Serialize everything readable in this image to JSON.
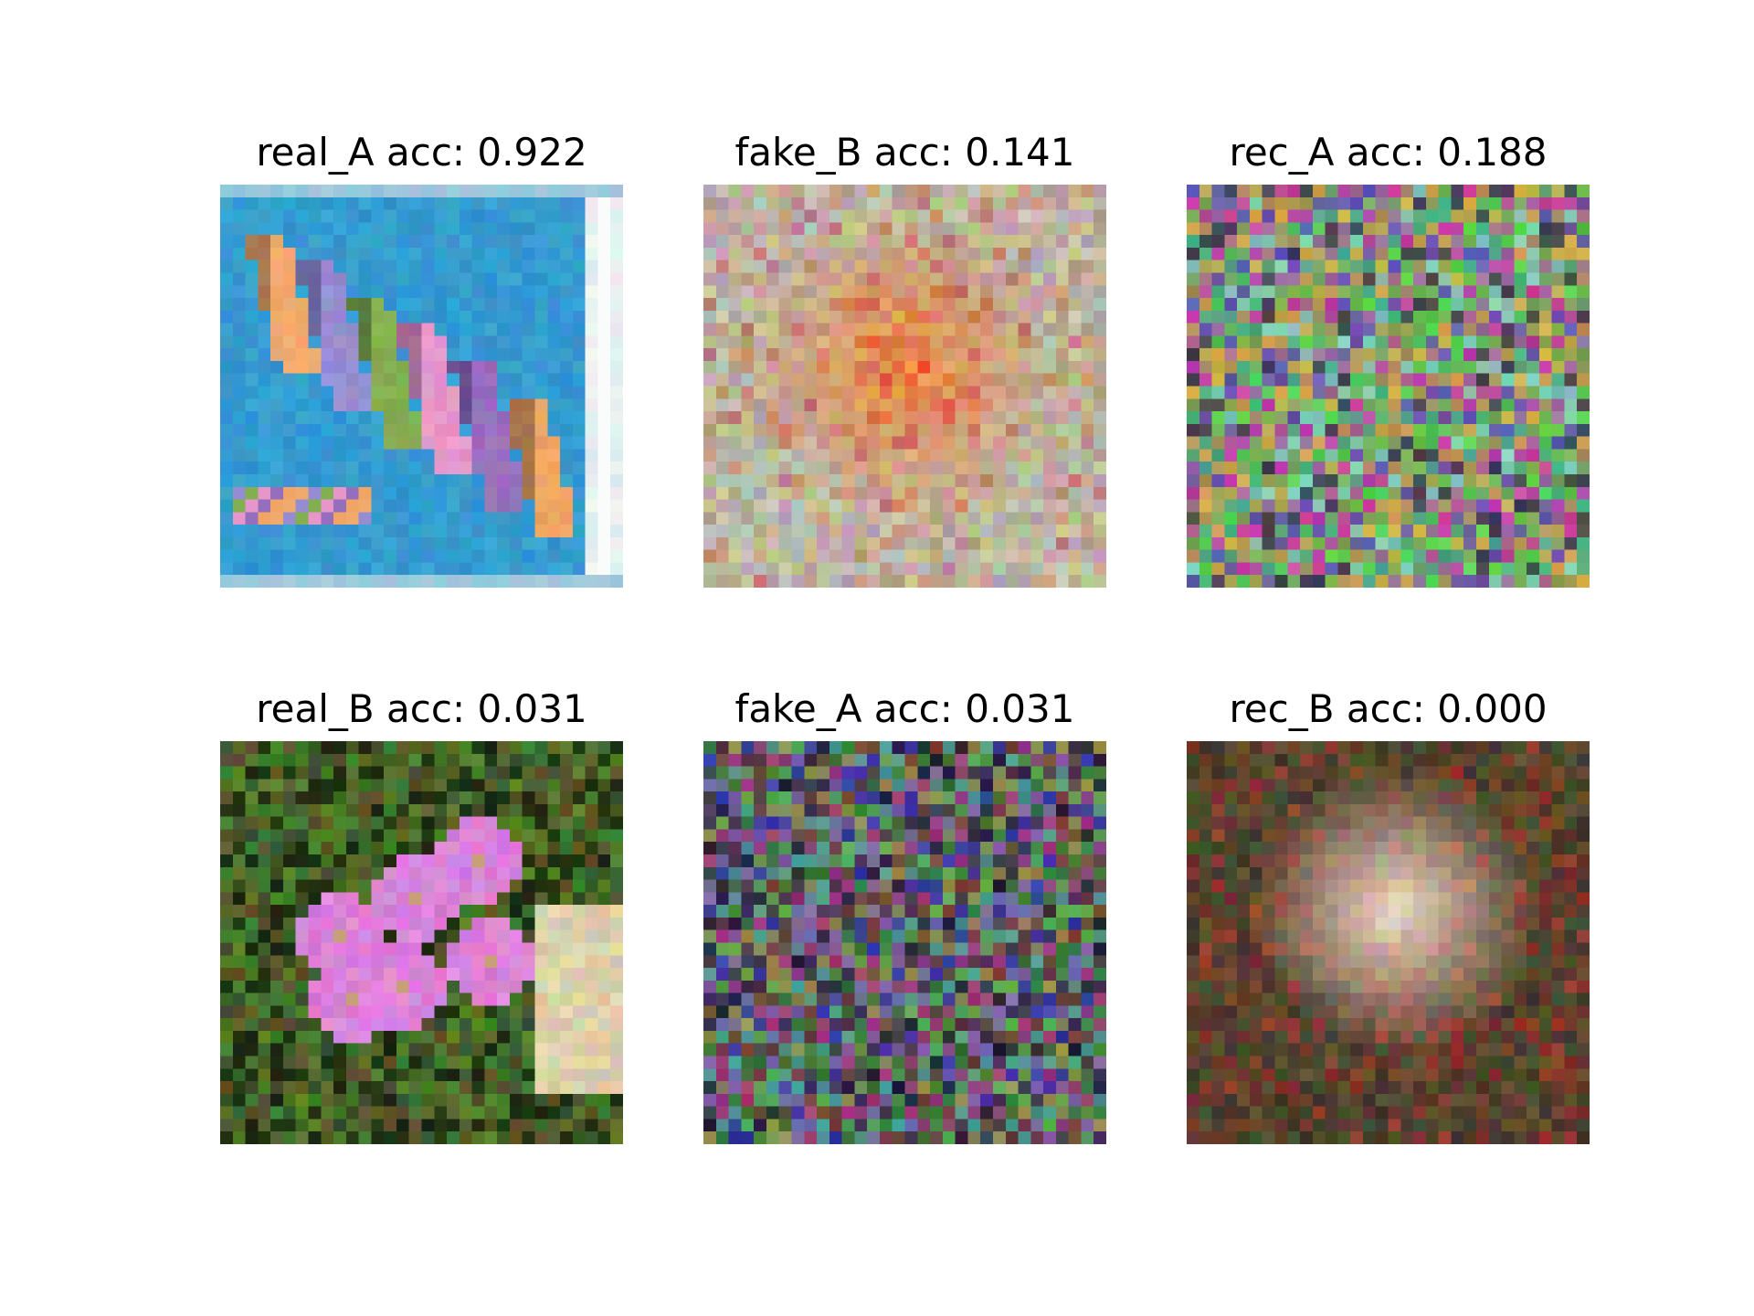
{
  "figure": {
    "panels": [
      {
        "id": "real_A",
        "title": "real_A acc: 0.922",
        "image_description": "pixelated photo of colorful macarons lined up on a blue background, light blue border and a white bar at right"
      },
      {
        "id": "fake_B",
        "title": "fake_B acc: 0.141",
        "image_description": "blurry noisy image with warm orange, yellow and red center and pale pastel noisy border"
      },
      {
        "id": "rec_A",
        "title": "rec_A acc: 0.188",
        "image_description": "pure colorful pixel noise in green, magenta, purple and olive"
      },
      {
        "id": "real_B",
        "title": "real_B acc: 0.031",
        "image_description": "pixelated photo of pink/purple flowers among dark green foliage with a beige area at the right"
      },
      {
        "id": "fake_A",
        "title": "fake_A acc: 0.031",
        "image_description": "dark saturated colorful pixel noise"
      },
      {
        "id": "rec_B",
        "title": "rec_B acc: 0.000",
        "image_description": "noisy image with a light pinkish-beige glowing center fading to dark brown-green edges"
      }
    ]
  }
}
